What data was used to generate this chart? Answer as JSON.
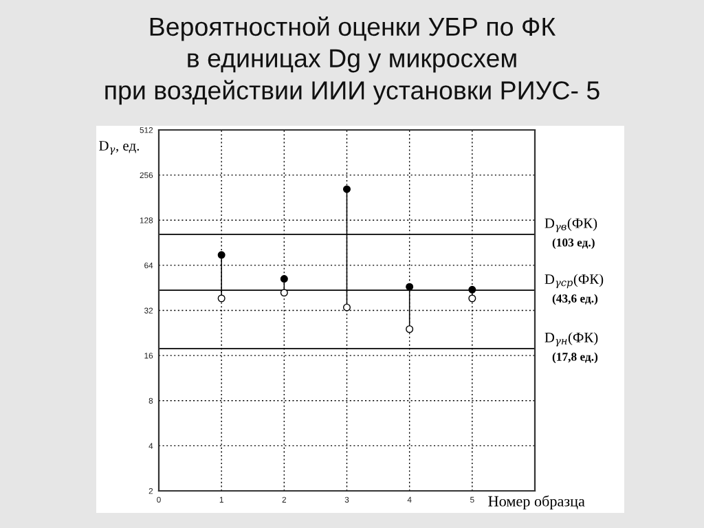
{
  "chart_data": {
    "type": "scatter",
    "title": "Вероятностной оценки УБР по ФК\nв единицах Dg у микросхем\nпри воздействии ИИИ установки РИУС- 5",
    "xlabel": "Номер образца",
    "ylabel": "D$_{γ}$, ед.",
    "x": [
      1,
      2,
      3,
      4,
      5
    ],
    "series": [
      {
        "type": "line",
        "marker": "none",
        "x": [
          1,
          1
        ],
        "values": [
          38.5,
          75
        ],
        "color": "#000000"
      },
      {
        "type": "line",
        "marker": "none",
        "x": [
          2,
          2
        ],
        "values": [
          42,
          52
        ],
        "color": "#000000"
      },
      {
        "type": "line",
        "marker": "none",
        "x": [
          3,
          3
        ],
        "values": [
          33.5,
          206
        ],
        "color": "#000000"
      },
      {
        "type": "line",
        "marker": "none",
        "x": [
          4,
          4
        ],
        "values": [
          24,
          46
        ],
        "color": "#000000"
      },
      {
        "type": "line",
        "marker": "none",
        "x": [
          5,
          5
        ],
        "values": [
          38.5,
          44
        ],
        "color": "#000000"
      },
      {
        "values": [
          75,
          52,
          206,
          46,
          44
        ],
        "color": "#000000"
      },
      {
        "values": [
          38.5,
          42,
          33.5,
          24,
          38.5
        ],
        "color": "#ffffff"
      }
    ],
    "xlim": [
      0,
      6
    ],
    "xticks": [
      0,
      1,
      2,
      3,
      4,
      5
    ],
    "ylim": [
      2,
      512
    ],
    "yticks": [
      2,
      4,
      8,
      16,
      32,
      64,
      128,
      256,
      512
    ],
    "log": "y",
    "grid": true,
    "marker": "circle",
    "ref_lines": [
      {
        "axis": "y",
        "value": 103,
        "label": "D$_{γв}$(ФК)\n(103 ед.)",
        "color": "#000000"
      },
      {
        "axis": "y",
        "value": 43.6,
        "label": "D$_{γср}$(ФК)\n(43,6 ед.)",
        "color": "#000000"
      },
      {
        "axis": "y",
        "value": 17.8,
        "label": "D$_{γн}$(ФК)\n(17,8 ед.)",
        "color": "#000000"
      }
    ]
  }
}
